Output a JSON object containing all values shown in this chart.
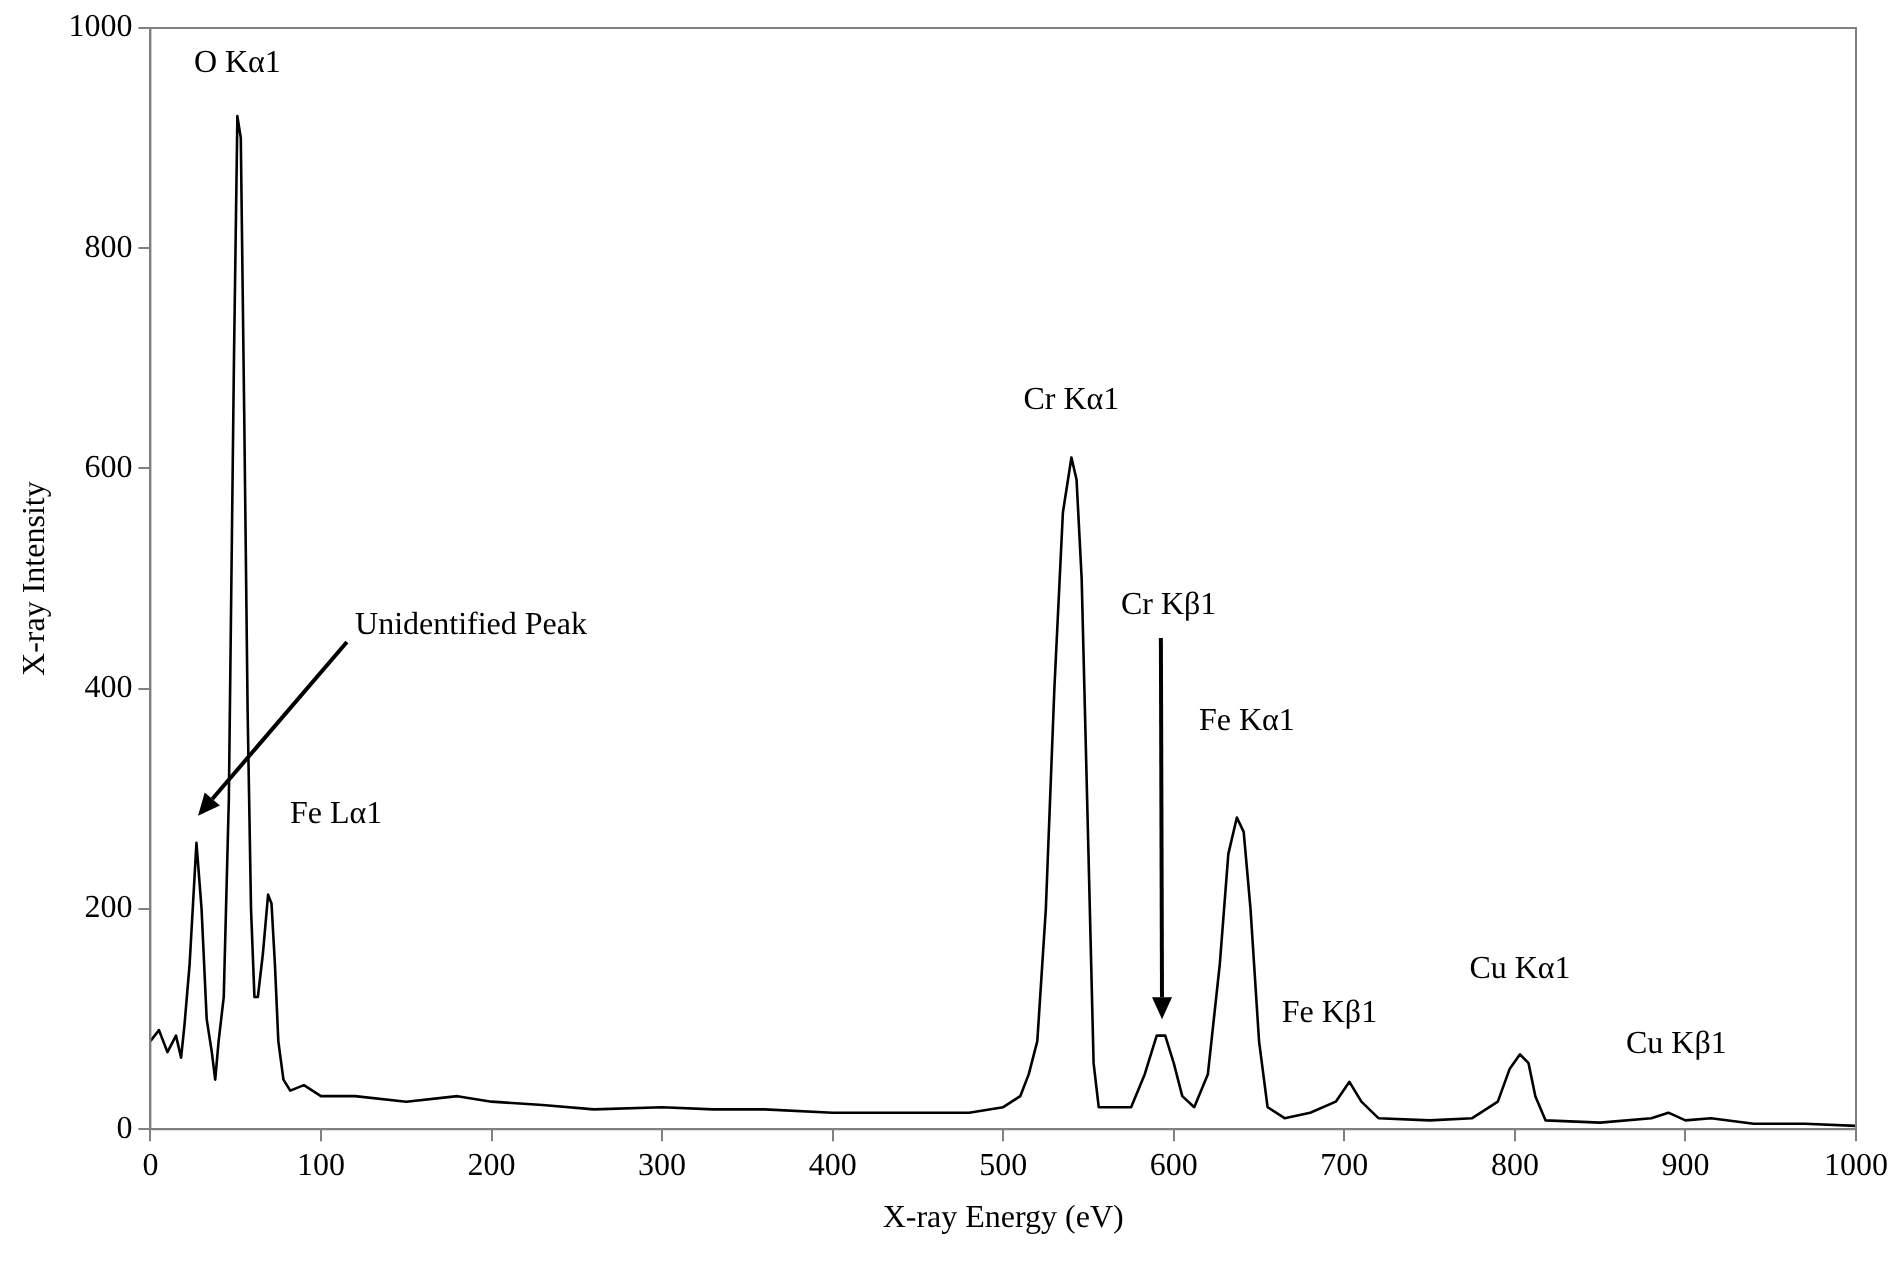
{
  "chart_data": {
    "type": "line",
    "xlabel": "X-ray Energy (eV)",
    "ylabel": "X-ray Intensity",
    "x": [
      0,
      5,
      10,
      15,
      18,
      20,
      23,
      27,
      30,
      33,
      36,
      38,
      40,
      43,
      46,
      49,
      51,
      53,
      55,
      57,
      59,
      61,
      63,
      66,
      69,
      71,
      73,
      75,
      78,
      82,
      90,
      100,
      120,
      150,
      180,
      200,
      230,
      260,
      300,
      330,
      360,
      400,
      450,
      480,
      500,
      510,
      515,
      520,
      525,
      530,
      535,
      540,
      543,
      546,
      550,
      553,
      556,
      565,
      575,
      583,
      590,
      595,
      600,
      605,
      612,
      620,
      627,
      632,
      637,
      641,
      645,
      650,
      655,
      665,
      680,
      695,
      703,
      710,
      720,
      750,
      775,
      790,
      797,
      803,
      808,
      812,
      818,
      850,
      880,
      890,
      900,
      915,
      940,
      970,
      1000
    ],
    "series": [
      {
        "color": "#000000",
        "values": [
          80,
          90,
          70,
          85,
          65,
          95,
          150,
          260,
          200,
          100,
          70,
          45,
          80,
          120,
          300,
          700,
          920,
          900,
          650,
          380,
          200,
          120,
          120,
          160,
          213,
          205,
          150,
          80,
          45,
          35,
          40,
          30,
          30,
          25,
          30,
          25,
          22,
          18,
          20,
          18,
          18,
          15,
          15,
          15,
          20,
          30,
          50,
          80,
          200,
          400,
          560,
          610,
          590,
          500,
          250,
          60,
          20,
          20,
          20,
          50,
          85,
          85,
          60,
          30,
          20,
          50,
          150,
          250,
          283,
          270,
          200,
          80,
          20,
          10,
          15,
          25,
          43,
          25,
          10,
          8,
          10,
          25,
          55,
          68,
          60,
          30,
          8,
          6,
          10,
          15,
          8,
          10,
          5,
          5,
          3
        ]
      }
    ],
    "xlim": [
      0,
      1000
    ],
    "xticks": [
      0,
      100,
      200,
      300,
      400,
      500,
      600,
      700,
      800,
      900,
      1000
    ],
    "ylim": [
      0,
      1000
    ],
    "yticks": [
      0,
      200,
      400,
      600,
      800,
      1000
    ],
    "grid": false,
    "legend": false,
    "marker": "none",
    "line_style": "solid",
    "annotations": [
      {
        "text": "O Kα1",
        "x": 51,
        "y": 920
      },
      "Unidentified Peak",
      {
        "text": "Fe Lα1",
        "x": 69,
        "y": 213
      },
      {
        "text": "Cr Kα1",
        "x": 540,
        "y": 610
      },
      "Cr Kβ1",
      {
        "text": "Fe Kα1",
        "x": 637,
        "y": 283
      },
      {
        "text": "Fe Kβ1",
        "x": 703,
        "y": 43
      },
      {
        "text": "Cu Kα1",
        "x": 803,
        "y": 68
      },
      {
        "text": "Cu Kβ1",
        "x": 890,
        "y": 15
      }
    ]
  }
}
